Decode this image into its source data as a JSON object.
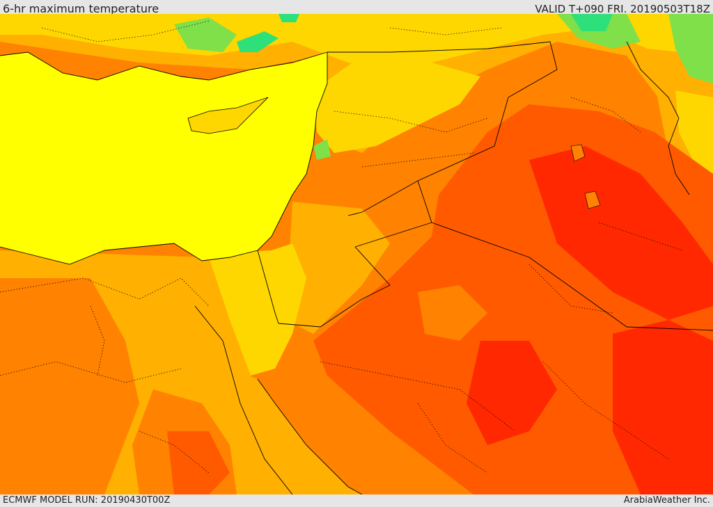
{
  "header": {
    "title": "6-hr maximum temperature",
    "valid": "VALID T+090 FRI. 20190503T18Z"
  },
  "footer": {
    "model_run": "ECMWF MODEL RUN: 20190430T00Z",
    "credit": "ArabiaWeather Inc."
  },
  "map": {
    "variable": "6-hr maximum temperature",
    "colors": {
      "sea": "#ffff00",
      "mild": "#ffd700",
      "warm": "#ffb000",
      "hot": "#ff8200",
      "very_hot": "#ff5a00",
      "extreme": "#ff2800",
      "cool": "#7fe04a",
      "cold": "#2ee07a",
      "border": "#000000"
    }
  }
}
